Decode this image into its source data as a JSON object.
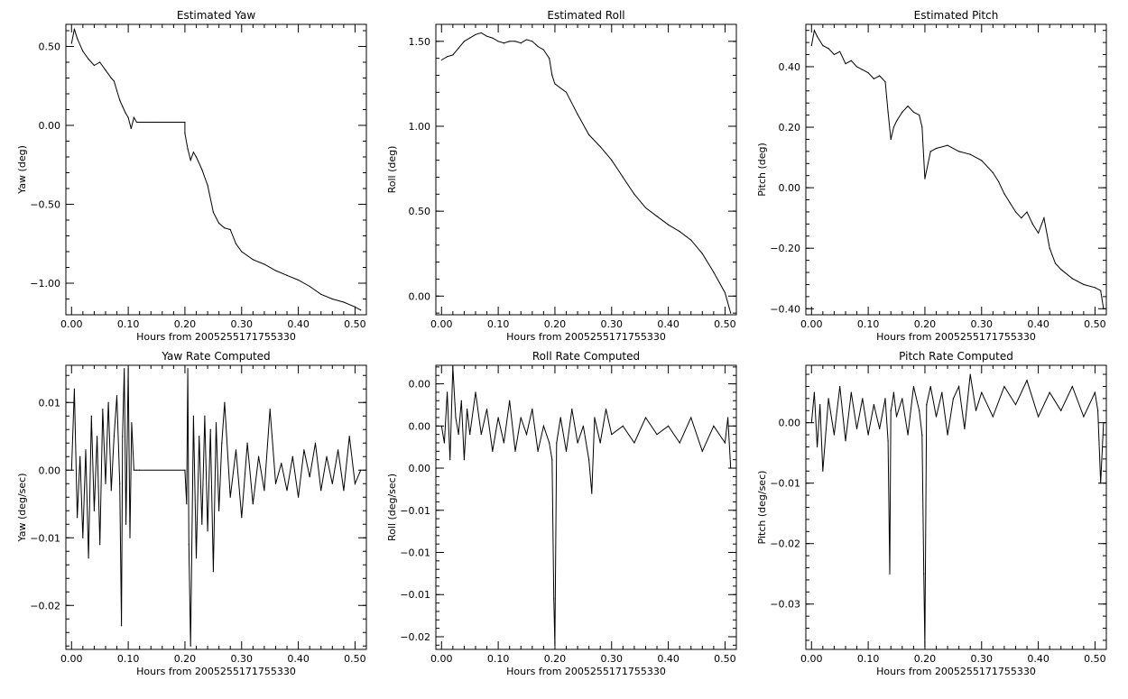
{
  "chart_data": [
    {
      "type": "line",
      "title": "Estimated Yaw",
      "xlabel": "Hours from 2005255171755330",
      "ylabel": "Yaw (deg)",
      "xlim": [
        -0.01,
        0.52
      ],
      "ylim": [
        -1.2,
        0.64
      ],
      "xticks": [
        0.0,
        0.1,
        0.2,
        0.3,
        0.4,
        0.5
      ],
      "xtick_labels": [
        "0.00",
        "0.10",
        "0.20",
        "0.30",
        "0.40",
        "0.50"
      ],
      "yticks": [
        0.5,
        0.0,
        -0.5,
        -1.0
      ],
      "ytick_labels": [
        "0.50",
        "0.00",
        "−0.50",
        "−1.00"
      ],
      "series": [
        {
          "x": [
            0.0,
            0.005,
            0.01,
            0.02,
            0.03,
            0.04,
            0.05,
            0.06,
            0.07,
            0.075,
            0.08,
            0.085,
            0.09,
            0.095,
            0.1,
            0.105,
            0.11,
            0.115,
            0.12,
            0.15,
            0.2,
            0.2,
            0.205,
            0.21,
            0.215,
            0.22,
            0.23,
            0.24,
            0.25,
            0.26,
            0.27,
            0.28,
            0.29,
            0.3,
            0.32,
            0.34,
            0.36,
            0.38,
            0.4,
            0.42,
            0.44,
            0.46,
            0.48,
            0.5,
            0.51
          ],
          "y": [
            0.52,
            0.61,
            0.55,
            0.47,
            0.42,
            0.38,
            0.4,
            0.35,
            0.3,
            0.28,
            0.22,
            0.16,
            0.12,
            0.08,
            0.05,
            -0.02,
            0.05,
            0.02,
            0.02,
            0.02,
            0.02,
            -0.05,
            -0.15,
            -0.22,
            -0.17,
            -0.2,
            -0.28,
            -0.38,
            -0.55,
            -0.62,
            -0.65,
            -0.66,
            -0.75,
            -0.8,
            -0.85,
            -0.88,
            -0.92,
            -0.95,
            -0.98,
            -1.02,
            -1.07,
            -1.1,
            -1.12,
            -1.15,
            -1.17
          ]
        }
      ]
    },
    {
      "type": "line",
      "title": "Estimated Roll",
      "xlabel": "Hours from 2005255171755330",
      "ylabel": "Roll (deg)",
      "xlim": [
        -0.01,
        0.52
      ],
      "ylim": [
        -0.11,
        1.6
      ],
      "xticks": [
        0.0,
        0.1,
        0.2,
        0.3,
        0.4,
        0.5
      ],
      "xtick_labels": [
        "0.00",
        "0.10",
        "0.20",
        "0.30",
        "0.40",
        "0.50"
      ],
      "yticks": [
        1.5,
        1.0,
        0.5,
        0.0
      ],
      "ytick_labels": [
        "1.50",
        "1.00",
        "0.50",
        "0.00"
      ],
      "series": [
        {
          "x": [
            0.0,
            0.01,
            0.02,
            0.03,
            0.04,
            0.05,
            0.06,
            0.07,
            0.08,
            0.09,
            0.1,
            0.11,
            0.12,
            0.13,
            0.14,
            0.15,
            0.16,
            0.17,
            0.18,
            0.19,
            0.195,
            0.2,
            0.22,
            0.24,
            0.26,
            0.28,
            0.3,
            0.32,
            0.34,
            0.36,
            0.38,
            0.4,
            0.42,
            0.44,
            0.46,
            0.48,
            0.5,
            0.51
          ],
          "y": [
            1.39,
            1.41,
            1.42,
            1.46,
            1.5,
            1.52,
            1.54,
            1.55,
            1.53,
            1.52,
            1.5,
            1.49,
            1.5,
            1.5,
            1.49,
            1.51,
            1.5,
            1.47,
            1.45,
            1.4,
            1.3,
            1.25,
            1.2,
            1.07,
            0.95,
            0.88,
            0.8,
            0.7,
            0.6,
            0.52,
            0.47,
            0.42,
            0.38,
            0.33,
            0.25,
            0.14,
            0.02,
            -0.1
          ]
        }
      ]
    },
    {
      "type": "line",
      "title": "Estimated Pitch",
      "xlabel": "Hours from 2005255171755330",
      "ylabel": "Pitch (deg)",
      "xlim": [
        -0.01,
        0.52
      ],
      "ylim": [
        -0.42,
        0.54
      ],
      "xticks": [
        0.0,
        0.1,
        0.2,
        0.3,
        0.4,
        0.5
      ],
      "xtick_labels": [
        "0.00",
        "0.10",
        "0.20",
        "0.30",
        "0.40",
        "0.50"
      ],
      "yticks": [
        0.4,
        0.2,
        0.0,
        -0.2,
        -0.4
      ],
      "ytick_labels": [
        "0.40",
        "0.20",
        "0.00",
        "−0.20",
        "−0.40"
      ],
      "series": [
        {
          "x": [
            0.0,
            0.005,
            0.01,
            0.02,
            0.03,
            0.04,
            0.05,
            0.06,
            0.07,
            0.08,
            0.09,
            0.1,
            0.11,
            0.12,
            0.13,
            0.135,
            0.14,
            0.145,
            0.15,
            0.16,
            0.17,
            0.18,
            0.19,
            0.195,
            0.2,
            0.21,
            0.22,
            0.24,
            0.26,
            0.28,
            0.3,
            0.32,
            0.33,
            0.34,
            0.35,
            0.36,
            0.37,
            0.38,
            0.39,
            0.4,
            0.41,
            0.42,
            0.43,
            0.44,
            0.46,
            0.48,
            0.5,
            0.51,
            0.515
          ],
          "y": [
            0.47,
            0.52,
            0.5,
            0.47,
            0.46,
            0.44,
            0.45,
            0.41,
            0.42,
            0.4,
            0.39,
            0.38,
            0.36,
            0.37,
            0.35,
            0.25,
            0.16,
            0.2,
            0.22,
            0.25,
            0.27,
            0.25,
            0.24,
            0.2,
            0.03,
            0.12,
            0.13,
            0.14,
            0.12,
            0.11,
            0.09,
            0.05,
            0.02,
            -0.02,
            -0.05,
            -0.08,
            -0.1,
            -0.08,
            -0.12,
            -0.15,
            -0.1,
            -0.2,
            -0.25,
            -0.27,
            -0.3,
            -0.32,
            -0.33,
            -0.34,
            -0.4
          ]
        }
      ]
    },
    {
      "type": "line",
      "title": "Yaw Rate Computed",
      "xlabel": "Hours from 2005255171755330",
      "ylabel": "Yaw (deg/sec)",
      "xlim": [
        -0.01,
        0.52
      ],
      "ylim": [
        -0.0265,
        0.0155
      ],
      "xticks": [
        0.0,
        0.1,
        0.2,
        0.3,
        0.4,
        0.5
      ],
      "xtick_labels": [
        "0.00",
        "0.10",
        "0.20",
        "0.30",
        "0.40",
        "0.50"
      ],
      "yticks": [
        0.01,
        0.0,
        -0.01,
        -0.02
      ],
      "ytick_labels": [
        "0.01",
        "0.00",
        "−0.01",
        "−0.02"
      ],
      "series": [
        {
          "x": [
            0.0,
            0.005,
            0.01,
            0.015,
            0.02,
            0.025,
            0.03,
            0.035,
            0.04,
            0.045,
            0.05,
            0.055,
            0.06,
            0.065,
            0.07,
            0.075,
            0.08,
            0.085,
            0.088,
            0.09,
            0.093,
            0.096,
            0.1,
            0.103,
            0.106,
            0.11,
            0.115,
            0.12,
            0.2,
            0.203,
            0.205,
            0.207,
            0.21,
            0.215,
            0.22,
            0.225,
            0.23,
            0.235,
            0.24,
            0.245,
            0.25,
            0.255,
            0.26,
            0.265,
            0.27,
            0.28,
            0.29,
            0.3,
            0.31,
            0.32,
            0.33,
            0.34,
            0.35,
            0.36,
            0.37,
            0.38,
            0.39,
            0.4,
            0.41,
            0.42,
            0.43,
            0.44,
            0.45,
            0.46,
            0.47,
            0.48,
            0.49,
            0.5,
            0.51
          ],
          "y": [
            0.0,
            0.012,
            -0.007,
            0.002,
            -0.01,
            0.003,
            -0.013,
            0.008,
            -0.006,
            0.005,
            -0.011,
            0.009,
            -0.002,
            0.01,
            -0.003,
            0.005,
            0.011,
            -0.002,
            -0.023,
            0.005,
            0.015,
            -0.008,
            0.015,
            -0.01,
            0.007,
            0.0,
            0.0,
            0.0,
            0.0,
            -0.005,
            0.015,
            -0.011,
            -0.026,
            0.008,
            -0.013,
            0.005,
            -0.008,
            0.008,
            -0.009,
            0.006,
            -0.015,
            0.007,
            -0.006,
            0.004,
            0.01,
            -0.004,
            0.003,
            -0.007,
            0.004,
            -0.005,
            0.002,
            -0.003,
            0.009,
            -0.002,
            0.001,
            -0.003,
            0.002,
            -0.004,
            0.003,
            -0.001,
            0.004,
            -0.003,
            0.002,
            -0.002,
            0.003,
            -0.003,
            0.005,
            -0.002,
            0.0
          ]
        }
      ]
    },
    {
      "type": "line",
      "title": "Roll Rate Computed",
      "xlabel": "Hours from 2005255171755330",
      "ylabel": "Roll (deg/sec)",
      "xlim": [
        -0.01,
        0.52
      ],
      "ylim": [
        -0.0215,
        0.0122
      ],
      "xticks": [
        0.0,
        0.1,
        0.2,
        0.3,
        0.4,
        0.5
      ],
      "xtick_labels": [
        "0.00",
        "0.10",
        "0.20",
        "0.30",
        "0.40",
        "0.50"
      ],
      "yticks": [
        0.01,
        0.005,
        0.0,
        -0.005,
        -0.01,
        -0.015,
        -0.02
      ],
      "ytick_labels": [
        "0.00",
        "0.00",
        "0.00",
        "−0.01",
        "−0.01",
        "−0.01",
        "−0.02"
      ],
      "series": [
        {
          "x": [
            0.0,
            0.005,
            0.01,
            0.015,
            0.02,
            0.025,
            0.03,
            0.035,
            0.04,
            0.045,
            0.05,
            0.06,
            0.07,
            0.08,
            0.09,
            0.1,
            0.11,
            0.12,
            0.13,
            0.14,
            0.15,
            0.16,
            0.17,
            0.18,
            0.19,
            0.195,
            0.198,
            0.2,
            0.203,
            0.21,
            0.22,
            0.23,
            0.24,
            0.25,
            0.26,
            0.265,
            0.27,
            0.28,
            0.29,
            0.3,
            0.32,
            0.34,
            0.36,
            0.38,
            0.4,
            0.42,
            0.44,
            0.46,
            0.48,
            0.5,
            0.505,
            0.51
          ],
          "y": [
            0.005,
            0.003,
            0.009,
            0.001,
            0.012,
            0.006,
            0.004,
            0.008,
            0.001,
            0.007,
            0.004,
            0.009,
            0.004,
            0.007,
            0.002,
            0.006,
            0.003,
            0.008,
            0.002,
            0.006,
            0.004,
            0.007,
            0.002,
            0.005,
            0.003,
            0.001,
            -0.0155,
            -0.021,
            0.003,
            0.006,
            0.002,
            0.007,
            0.003,
            0.005,
            0.001,
            -0.003,
            0.006,
            0.003,
            0.007,
            0.004,
            0.005,
            0.003,
            0.006,
            0.004,
            0.005,
            0.003,
            0.006,
            0.002,
            0.005,
            0.003,
            0.006,
            0.0
          ]
        }
      ]
    },
    {
      "type": "line",
      "title": "Pitch Rate Computed",
      "xlabel": "Hours from 2005255171755330",
      "ylabel": "Pitch (deg/sec)",
      "xlim": [
        -0.01,
        0.52
      ],
      "ylim": [
        -0.0375,
        0.0095
      ],
      "xticks": [
        0.0,
        0.1,
        0.2,
        0.3,
        0.4,
        0.5
      ],
      "xtick_labels": [
        "0.00",
        "0.10",
        "0.20",
        "0.30",
        "0.40",
        "0.50"
      ],
      "yticks": [
        0.0,
        -0.01,
        -0.02,
        -0.03
      ],
      "ytick_labels": [
        "0.00",
        "−0.01",
        "−0.02",
        "−0.03"
      ],
      "series": [
        {
          "x": [
            0.0,
            0.005,
            0.01,
            0.015,
            0.02,
            0.03,
            0.04,
            0.05,
            0.06,
            0.07,
            0.08,
            0.09,
            0.1,
            0.11,
            0.12,
            0.13,
            0.135,
            0.138,
            0.14,
            0.142,
            0.145,
            0.15,
            0.16,
            0.17,
            0.18,
            0.19,
            0.195,
            0.198,
            0.2,
            0.203,
            0.21,
            0.22,
            0.23,
            0.24,
            0.25,
            0.26,
            0.27,
            0.28,
            0.29,
            0.3,
            0.32,
            0.34,
            0.36,
            0.38,
            0.4,
            0.42,
            0.44,
            0.46,
            0.48,
            0.5,
            0.505,
            0.51,
            0.515
          ],
          "y": [
            0.0,
            0.005,
            -0.004,
            0.003,
            -0.008,
            0.004,
            -0.002,
            0.006,
            -0.003,
            0.005,
            -0.001,
            0.004,
            -0.002,
            0.003,
            -0.001,
            0.004,
            -0.003,
            -0.025,
            0.002,
            0.003,
            0.005,
            0.001,
            0.004,
            -0.002,
            0.006,
            0.002,
            -0.002,
            -0.025,
            -0.037,
            0.003,
            0.006,
            0.001,
            0.005,
            -0.002,
            0.004,
            0.006,
            -0.001,
            0.008,
            0.002,
            0.005,
            0.001,
            0.006,
            0.003,
            0.007,
            0.001,
            0.005,
            0.002,
            0.006,
            0.001,
            0.005,
            0.002,
            -0.01,
            0.0
          ]
        }
      ]
    }
  ]
}
